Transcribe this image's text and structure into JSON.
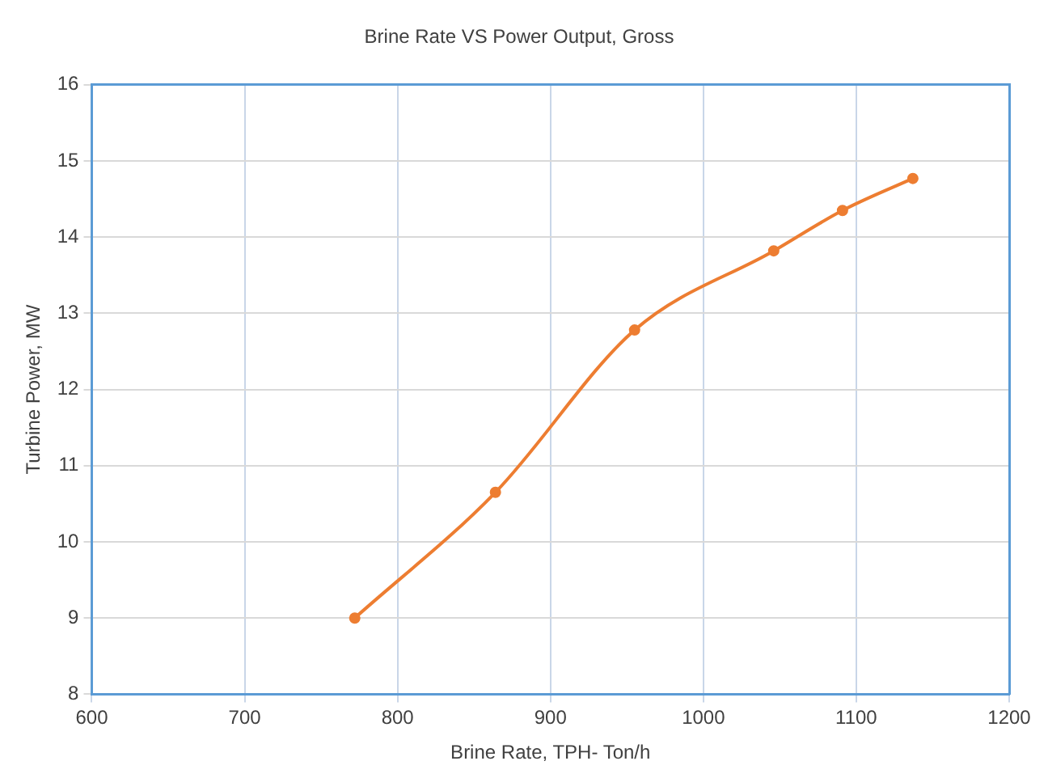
{
  "chart_data": {
    "type": "line",
    "title": "Brine Rate VS Power Output, Gross",
    "xlabel": "Brine Rate, TPH- Ton/h",
    "ylabel": "Turbine Power, MW",
    "x": [
      772,
      864,
      955,
      1046,
      1091,
      1137
    ],
    "series": [
      {
        "color": "#ed7d31",
        "values": [
          9.0,
          10.65,
          12.78,
          13.82,
          14.35,
          14.77
        ]
      }
    ],
    "xlim": [
      600,
      1200
    ],
    "xticks": [
      600,
      700,
      800,
      900,
      1000,
      1100,
      1200
    ],
    "ylim": [
      8,
      16
    ],
    "yticks": [
      8,
      9,
      10,
      11,
      12,
      13,
      14,
      15,
      16
    ],
    "grid": true,
    "legend": false,
    "marker": "circle",
    "line_style": "solid"
  }
}
